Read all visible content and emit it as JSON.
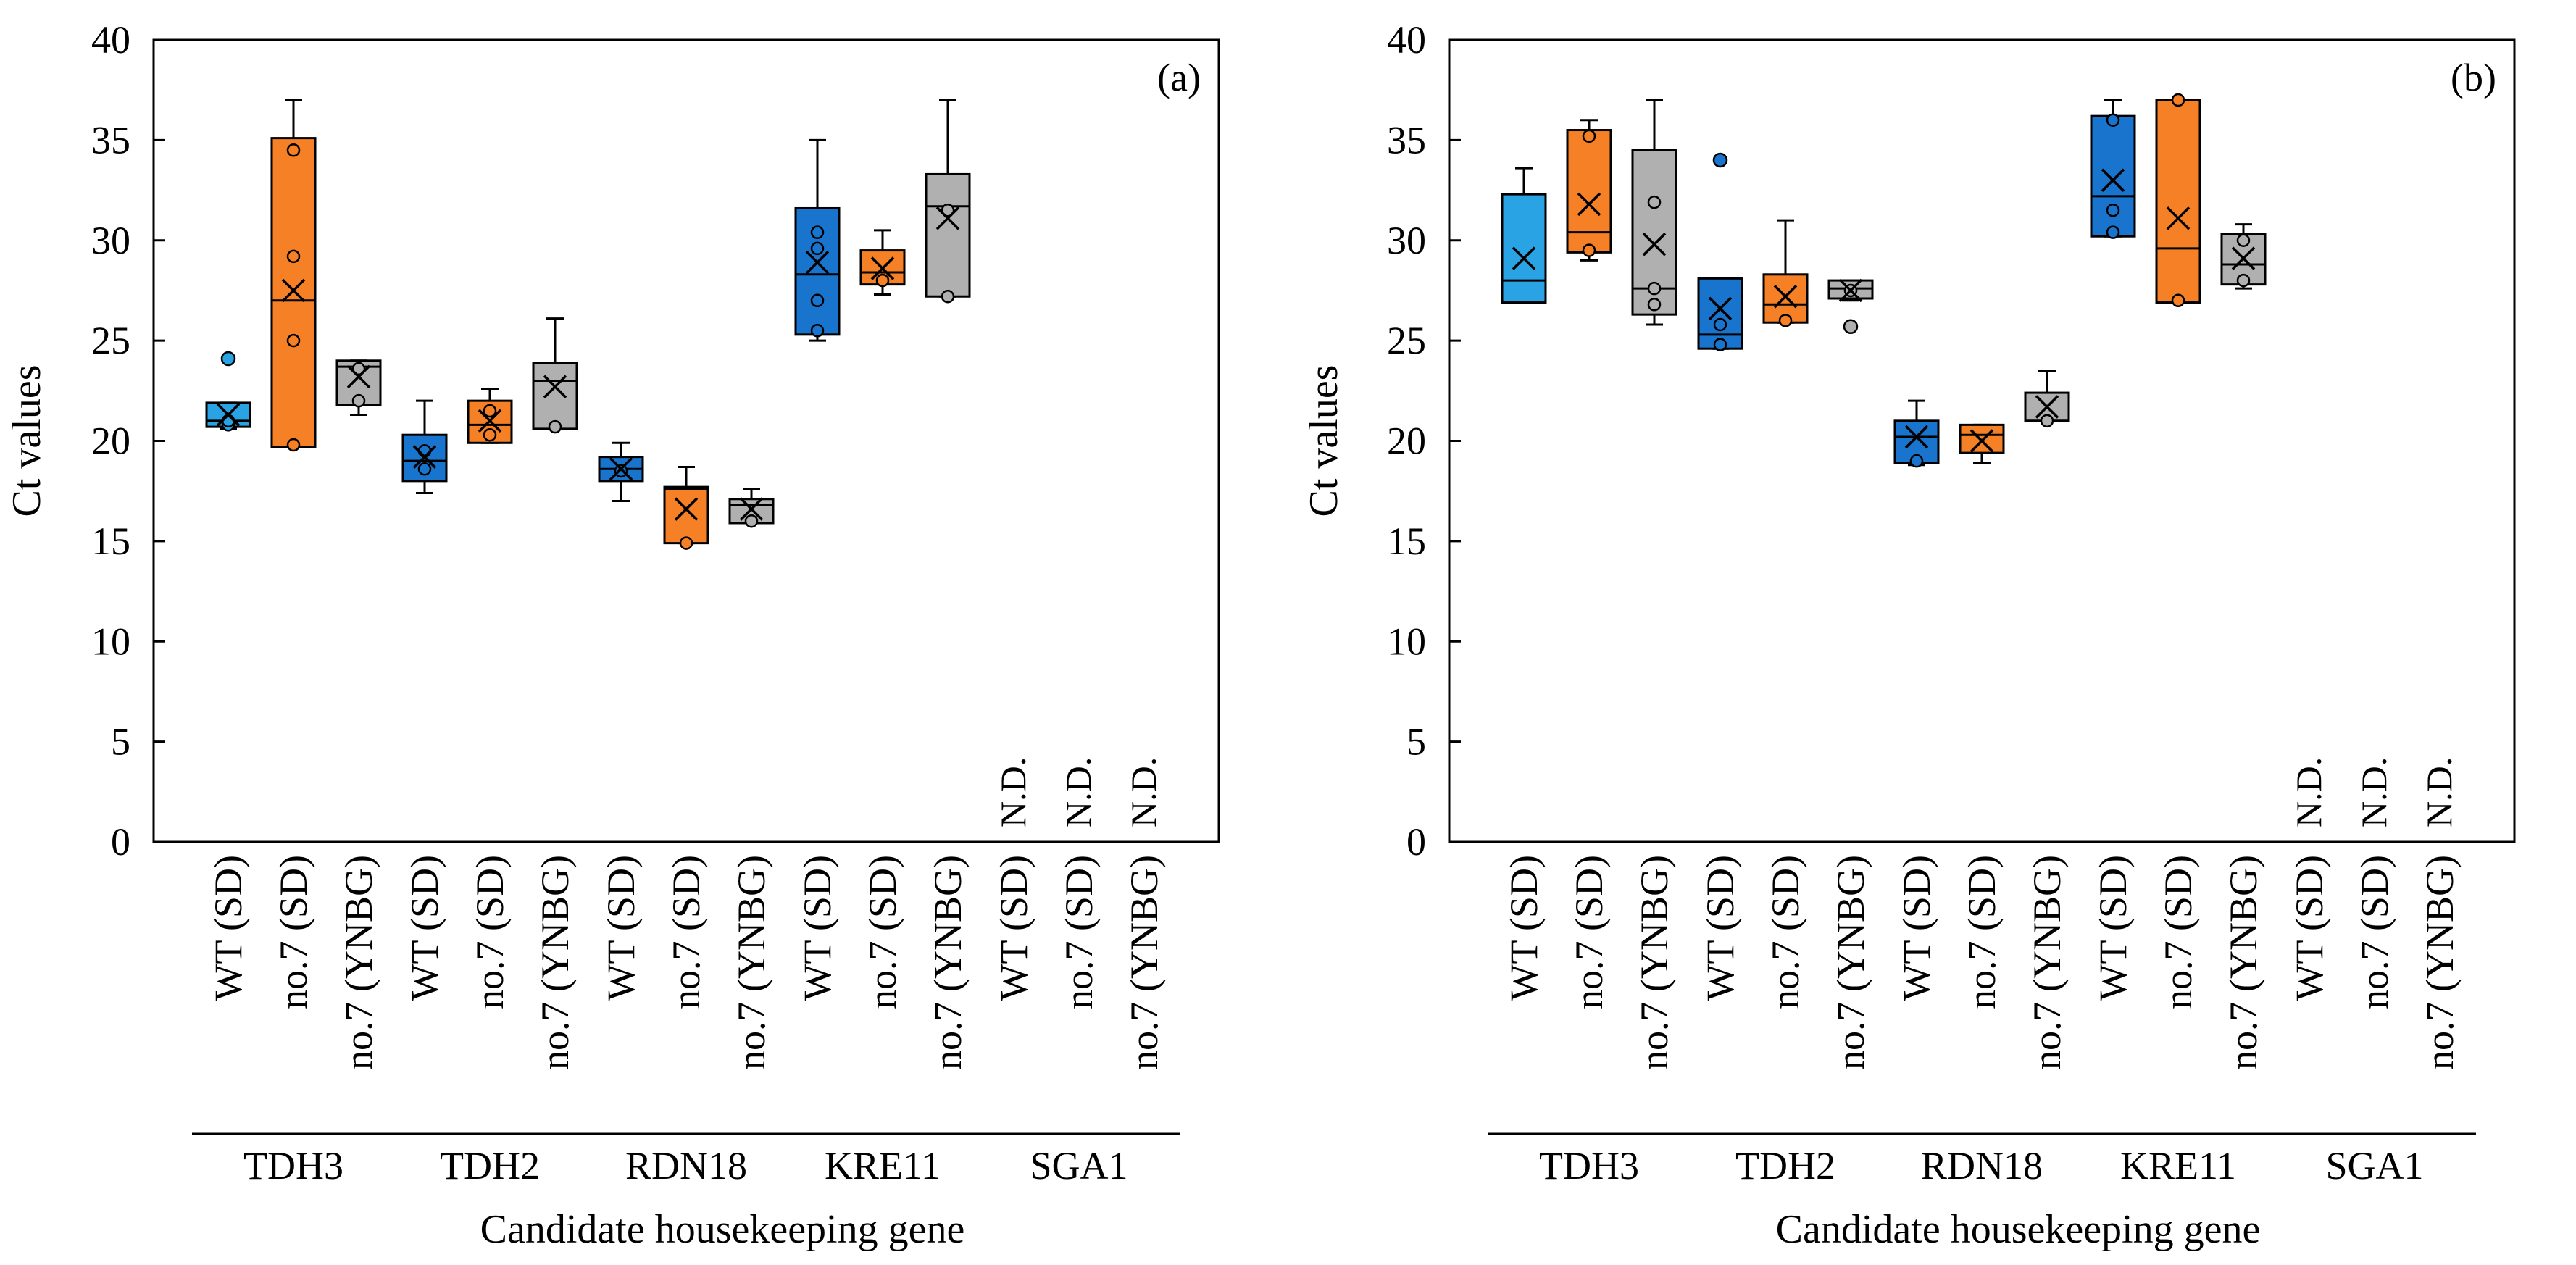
{
  "figure": {
    "description_labels": {
      "ylabel": "Ct values",
      "xlabel": "Candidate housekeeping gene"
    }
  },
  "colors": {
    "wt_light": "#29a3e3",
    "wt_dark": "#1874cd",
    "orange": "#f58025",
    "gray": "#b0b0b0",
    "outline": "#000000"
  },
  "chart_data": [
    {
      "type": "box",
      "panel_label": "(a)",
      "title": "",
      "xlabel": "Candidate housekeeping gene",
      "ylabel": "Ct values",
      "ylim": [
        0,
        40
      ],
      "yticks": [
        0,
        5,
        10,
        15,
        20,
        25,
        30,
        35,
        40
      ],
      "grid": false,
      "not_detected_label": "N.D.",
      "groups": [
        {
          "gene": "TDH3",
          "categories": [
            {
              "label": "WT (SD)",
              "color": "wt_light",
              "whisker_low": 20.6,
              "q1": 20.7,
              "median": 21.0,
              "q3": 21.9,
              "whisker_high": 21.9,
              "mean": 21.3,
              "points": [
                20.8,
                21.0
              ],
              "outliers": [
                24.1
              ]
            },
            {
              "label": "no.7 (SD)",
              "color": "orange",
              "whisker_low": 19.7,
              "q1": 19.7,
              "median": 27.0,
              "q3": 35.1,
              "whisker_high": 37.0,
              "mean": 27.5,
              "points": [
                34.5,
                29.2,
                25.0,
                19.8
              ],
              "outliers": []
            },
            {
              "label": "no.7 (YNBG)",
              "color": "gray",
              "whisker_low": 21.3,
              "q1": 21.8,
              "median": 23.7,
              "q3": 24.0,
              "whisker_high": 24.0,
              "mean": 23.2,
              "points": [
                23.6,
                22.0
              ],
              "outliers": []
            }
          ]
        },
        {
          "gene": "TDH2",
          "categories": [
            {
              "label": "WT (SD)",
              "color": "wt_dark",
              "whisker_low": 17.4,
              "q1": 18.0,
              "median": 19.0,
              "q3": 20.3,
              "whisker_high": 22.0,
              "mean": 19.2,
              "points": [
                18.6,
                19.5
              ],
              "outliers": []
            },
            {
              "label": "no.7 (SD)",
              "color": "orange",
              "whisker_low": 19.9,
              "q1": 19.9,
              "median": 20.8,
              "q3": 22.0,
              "whisker_high": 22.6,
              "mean": 21.0,
              "points": [
                21.5,
                20.3
              ],
              "outliers": []
            },
            {
              "label": "no.7 (YNBG)",
              "color": "gray",
              "whisker_low": 20.6,
              "q1": 20.6,
              "median": 23.0,
              "q3": 23.9,
              "whisker_high": 26.1,
              "mean": 22.7,
              "points": [
                20.7
              ],
              "outliers": []
            }
          ]
        },
        {
          "gene": "RDN18",
          "categories": [
            {
              "label": "WT (SD)",
              "color": "wt_dark",
              "whisker_low": 17.0,
              "q1": 18.0,
              "median": 18.6,
              "q3": 19.2,
              "whisker_high": 19.9,
              "mean": 18.6,
              "points": [
                18.5
              ],
              "outliers": []
            },
            {
              "label": "no.7 (SD)",
              "color": "orange",
              "whisker_low": 14.9,
              "q1": 14.9,
              "median": 17.6,
              "q3": 17.7,
              "whisker_high": 18.7,
              "mean": 16.6,
              "points": [
                14.9
              ],
              "outliers": []
            },
            {
              "label": "no.7 (YNBG)",
              "color": "gray",
              "whisker_low": 15.9,
              "q1": 15.9,
              "median": 16.8,
              "q3": 17.1,
              "whisker_high": 17.6,
              "mean": 16.6,
              "points": [
                16.0
              ],
              "outliers": []
            }
          ]
        },
        {
          "gene": "KRE11",
          "categories": [
            {
              "label": "WT (SD)",
              "color": "wt_dark",
              "whisker_low": 25.0,
              "q1": 25.3,
              "median": 28.3,
              "q3": 31.6,
              "whisker_high": 35.0,
              "mean": 28.9,
              "points": [
                30.4,
                29.6,
                27.0,
                25.5
              ],
              "outliers": []
            },
            {
              "label": "no.7 (SD)",
              "color": "orange",
              "whisker_low": 27.3,
              "q1": 27.8,
              "median": 28.4,
              "q3": 29.5,
              "whisker_high": 30.5,
              "mean": 28.6,
              "points": [
                28.0
              ],
              "outliers": []
            },
            {
              "label": "no.7 (YNBG)",
              "color": "gray",
              "whisker_low": 27.2,
              "q1": 27.2,
              "median": 31.7,
              "q3": 33.3,
              "whisker_high": 37.0,
              "mean": 31.1,
              "points": [
                31.5,
                27.2
              ],
              "outliers": []
            }
          ]
        },
        {
          "gene": "SGA1",
          "categories": [
            {
              "label": "WT (SD)",
              "nd": true
            },
            {
              "label": "no.7 (SD)",
              "nd": true
            },
            {
              "label": "no.7 (YNBG)",
              "nd": true
            }
          ]
        }
      ]
    },
    {
      "type": "box",
      "panel_label": "(b)",
      "title": "",
      "xlabel": "Candidate housekeeping gene",
      "ylabel": "Ct values",
      "ylim": [
        0,
        40
      ],
      "yticks": [
        0,
        5,
        10,
        15,
        20,
        25,
        30,
        35,
        40
      ],
      "grid": false,
      "not_detected_label": "N.D.",
      "groups": [
        {
          "gene": "TDH3",
          "categories": [
            {
              "label": "WT (SD)",
              "color": "wt_light",
              "whisker_low": 26.9,
              "q1": 26.9,
              "median": 28.0,
              "q3": 32.3,
              "whisker_high": 33.6,
              "mean": 29.1,
              "points": [],
              "outliers": []
            },
            {
              "label": "no.7 (SD)",
              "color": "orange",
              "whisker_low": 29.0,
              "q1": 29.4,
              "median": 30.4,
              "q3": 35.5,
              "whisker_high": 36.0,
              "mean": 31.8,
              "points": [
                35.2,
                29.5
              ],
              "outliers": []
            },
            {
              "label": "no.7 (YNBG)",
              "color": "gray",
              "whisker_low": 25.8,
              "q1": 26.3,
              "median": 27.6,
              "q3": 34.5,
              "whisker_high": 37.0,
              "mean": 29.8,
              "points": [
                31.9,
                27.6,
                26.8
              ],
              "outliers": []
            }
          ]
        },
        {
          "gene": "TDH2",
          "categories": [
            {
              "label": "WT (SD)",
              "color": "wt_dark",
              "whisker_low": 24.6,
              "q1": 24.6,
              "median": 25.3,
              "q3": 28.1,
              "whisker_high": 28.1,
              "mean": 26.6,
              "points": [
                25.8,
                24.8
              ],
              "outliers": [
                34.0
              ]
            },
            {
              "label": "no.7 (SD)",
              "color": "orange",
              "whisker_low": 25.9,
              "q1": 25.9,
              "median": 26.8,
              "q3": 28.3,
              "whisker_high": 31.0,
              "mean": 27.2,
              "points": [
                26.0
              ],
              "outliers": []
            },
            {
              "label": "no.7 (YNBG)",
              "color": "gray",
              "whisker_low": 27.0,
              "q1": 27.1,
              "median": 27.6,
              "q3": 28.0,
              "whisker_high": 28.0,
              "mean": 27.5,
              "points": [
                27.5
              ],
              "outliers": [
                25.7
              ]
            }
          ]
        },
        {
          "gene": "RDN18",
          "categories": [
            {
              "label": "WT (SD)",
              "color": "wt_dark",
              "whisker_low": 18.8,
              "q1": 18.9,
              "median": 20.2,
              "q3": 21.0,
              "whisker_high": 22.0,
              "mean": 20.2,
              "points": [
                19.0
              ],
              "outliers": []
            },
            {
              "label": "no.7 (SD)",
              "color": "orange",
              "whisker_low": 18.9,
              "q1": 19.4,
              "median": 20.3,
              "q3": 20.8,
              "whisker_high": 20.8,
              "mean": 20.0,
              "points": [],
              "outliers": []
            },
            {
              "label": "no.7 (YNBG)",
              "color": "gray",
              "whisker_low": 21.0,
              "q1": 21.0,
              "median": 21.0,
              "q3": 22.4,
              "whisker_high": 23.5,
              "mean": 21.7,
              "points": [
                21.0
              ],
              "outliers": []
            }
          ]
        },
        {
          "gene": "KRE11",
          "categories": [
            {
              "label": "WT (SD)",
              "color": "wt_dark",
              "whisker_low": 30.2,
              "q1": 30.2,
              "median": 32.2,
              "q3": 36.2,
              "whisker_high": 37.0,
              "mean": 33.0,
              "points": [
                36.0,
                31.5,
                30.4
              ],
              "outliers": []
            },
            {
              "label": "no.7 (SD)",
              "color": "orange",
              "whisker_low": 26.9,
              "q1": 26.9,
              "median": 29.6,
              "q3": 37.0,
              "whisker_high": 37.0,
              "mean": 31.1,
              "points": [
                37.0,
                27.0
              ],
              "outliers": []
            },
            {
              "label": "no.7 (YNBG)",
              "color": "gray",
              "whisker_low": 27.6,
              "q1": 27.8,
              "median": 28.8,
              "q3": 30.3,
              "whisker_high": 30.8,
              "mean": 29.1,
              "points": [
                30.0,
                28.0
              ],
              "outliers": []
            }
          ]
        },
        {
          "gene": "SGA1",
          "categories": [
            {
              "label": "WT (SD)",
              "nd": true
            },
            {
              "label": "no.7 (SD)",
              "nd": true
            },
            {
              "label": "no.7 (YNBG)",
              "nd": true
            }
          ]
        }
      ]
    }
  ]
}
